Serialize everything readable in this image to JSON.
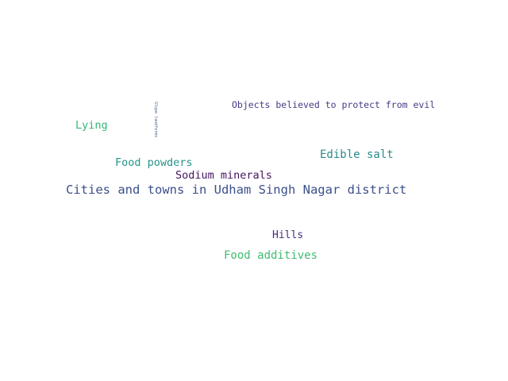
{
  "word_cloud": {
    "words": [
      {
        "id": "cities",
        "text": "Cities and towns in Udham Singh Nagar district",
        "color": "#3b4f8a"
      },
      {
        "id": "objects",
        "text": "Objects believed to protect from evil",
        "color": "#4a3a86"
      },
      {
        "id": "lying",
        "text": "Lying",
        "color": "#35b778"
      },
      {
        "id": "slope",
        "text": "Slope landforms",
        "color": "#4a5a8f"
      },
      {
        "id": "edible",
        "text": "Edible salt",
        "color": "#2a8a8c"
      },
      {
        "id": "powders",
        "text": "Food powders",
        "color": "#25938a"
      },
      {
        "id": "sodium",
        "text": "Sodium minerals",
        "color": "#44135f"
      },
      {
        "id": "hills",
        "text": "Hills",
        "color": "#4b2a7e"
      },
      {
        "id": "additives",
        "text": "Food additives",
        "color": "#3fbc73"
      }
    ]
  }
}
